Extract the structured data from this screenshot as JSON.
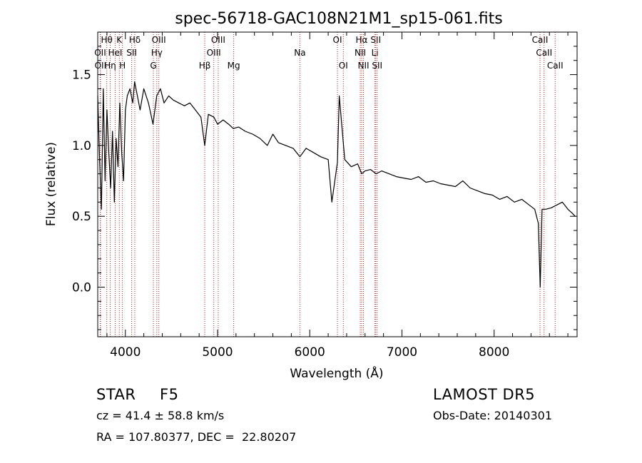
{
  "chart_data": {
    "type": "line",
    "title": "spec-56718-GAC108N21M1_sp15-061.fits",
    "xlabel": "Wavelength (Å)",
    "ylabel": "Flux (relative)",
    "xlim": [
      3700,
      8900
    ],
    "ylim": [
      -0.35,
      1.8
    ],
    "xticks": [
      4000,
      5000,
      6000,
      7000,
      8000
    ],
    "xtick_labels": [
      "4000",
      "5000",
      "6000",
      "7000",
      "8000"
    ],
    "yticks": [
      0.0,
      0.5,
      1.0,
      1.5
    ],
    "ytick_labels": [
      "0.0",
      "0.5",
      "1.0",
      "1.5"
    ],
    "grid": false,
    "line_color": "#000000",
    "marker_color": "#b22222",
    "spectrum": {
      "x": [
        3700,
        3720,
        3740,
        3760,
        3780,
        3800,
        3820,
        3840,
        3860,
        3880,
        3900,
        3920,
        3940,
        3960,
        3980,
        4000,
        4020,
        4050,
        4080,
        4100,
        4130,
        4160,
        4200,
        4250,
        4300,
        4340,
        4380,
        4420,
        4470,
        4520,
        4580,
        4640,
        4700,
        4760,
        4820,
        4861,
        4900,
        4960,
        5000,
        5060,
        5120,
        5170,
        5230,
        5300,
        5380,
        5460,
        5540,
        5600,
        5660,
        5740,
        5820,
        5893,
        5960,
        6040,
        6120,
        6200,
        6240,
        6300,
        6320,
        6380,
        6450,
        6520,
        6563,
        6600,
        6660,
        6720,
        6780,
        6860,
        6940,
        7020,
        7100,
        7180,
        7260,
        7340,
        7420,
        7500,
        7580,
        7660,
        7740,
        7820,
        7900,
        7980,
        8060,
        8140,
        8220,
        8300,
        8380,
        8440,
        8480,
        8500,
        8520,
        8560,
        8620,
        8680,
        8740,
        8800,
        8850,
        8880
      ],
      "y": [
        1.35,
        0.9,
        0.55,
        1.4,
        0.75,
        1.25,
        0.95,
        0.7,
        1.1,
        0.6,
        1.05,
        0.85,
        1.3,
        0.95,
        0.75,
        1.25,
        1.35,
        1.4,
        1.3,
        1.45,
        1.35,
        1.25,
        1.4,
        1.3,
        1.15,
        1.35,
        1.4,
        1.3,
        1.35,
        1.32,
        1.3,
        1.28,
        1.3,
        1.25,
        1.2,
        1.0,
        1.22,
        1.2,
        1.15,
        1.18,
        1.15,
        1.12,
        1.13,
        1.1,
        1.08,
        1.05,
        1.0,
        1.08,
        1.02,
        1.0,
        0.98,
        0.92,
        0.98,
        0.95,
        0.92,
        0.9,
        0.6,
        0.88,
        1.35,
        0.9,
        0.85,
        0.87,
        0.8,
        0.82,
        0.83,
        0.8,
        0.82,
        0.8,
        0.78,
        0.77,
        0.76,
        0.78,
        0.74,
        0.75,
        0.73,
        0.72,
        0.71,
        0.75,
        0.7,
        0.68,
        0.66,
        0.65,
        0.62,
        0.64,
        0.6,
        0.62,
        0.58,
        0.55,
        0.45,
        0.0,
        0.55,
        0.55,
        0.56,
        0.58,
        0.6,
        0.55,
        0.52,
        0.5
      ]
    },
    "line_markers": [
      {
        "label": "Hθ",
        "x": 3798,
        "row": 1
      },
      {
        "label": "K",
        "x": 3934,
        "row": 1
      },
      {
        "label": "Hδ",
        "x": 4102,
        "row": 1
      },
      {
        "label": "OIII",
        "x": 4363,
        "row": 1
      },
      {
        "label": "OIII",
        "x": 5007,
        "row": 1
      },
      {
        "label": "OI",
        "x": 6300,
        "row": 1
      },
      {
        "label": "Hα",
        "x": 6563,
        "row": 1
      },
      {
        "label": "SII",
        "x": 6716,
        "row": 1
      },
      {
        "label": "CaII",
        "x": 8498,
        "row": 1
      },
      {
        "label": "OII",
        "x": 3727,
        "row": 2
      },
      {
        "label": "HeI",
        "x": 3889,
        "row": 2
      },
      {
        "label": "SII",
        "x": 4068,
        "row": 2
      },
      {
        "label": "Hγ",
        "x": 4341,
        "row": 2
      },
      {
        "label": "OIII",
        "x": 4959,
        "row": 2
      },
      {
        "label": "NII",
        "x": 6548,
        "row": 2
      },
      {
        "label": "Li",
        "x": 6707,
        "row": 2
      },
      {
        "label": "CaII",
        "x": 8542,
        "row": 2
      },
      {
        "label": "OII",
        "x": 3730,
        "row": 3
      },
      {
        "label": "Hη",
        "x": 3835,
        "row": 3
      },
      {
        "label": "H",
        "x": 3968,
        "row": 3
      },
      {
        "label": "G",
        "x": 4304,
        "row": 3
      },
      {
        "label": "Hβ",
        "x": 4861,
        "row": 3
      },
      {
        "label": "Mg",
        "x": 5175,
        "row": 3
      },
      {
        "label": "Na",
        "x": 5893,
        "row": 2
      },
      {
        "label": "OI",
        "x": 6364,
        "row": 3
      },
      {
        "label": "NII",
        "x": 6583,
        "row": 3
      },
      {
        "label": "SII",
        "x": 6731,
        "row": 3
      },
      {
        "label": "CaII",
        "x": 8662,
        "row": 3
      }
    ]
  },
  "footer": {
    "object_class": "STAR",
    "subclass": "F5",
    "survey": "LAMOST DR5",
    "cz": "cz = 41.4 ± 58.8 km/s",
    "obs_date": "Obs-Date: 20140301",
    "coords": "RA = 107.80377, DEC =  22.80207"
  }
}
